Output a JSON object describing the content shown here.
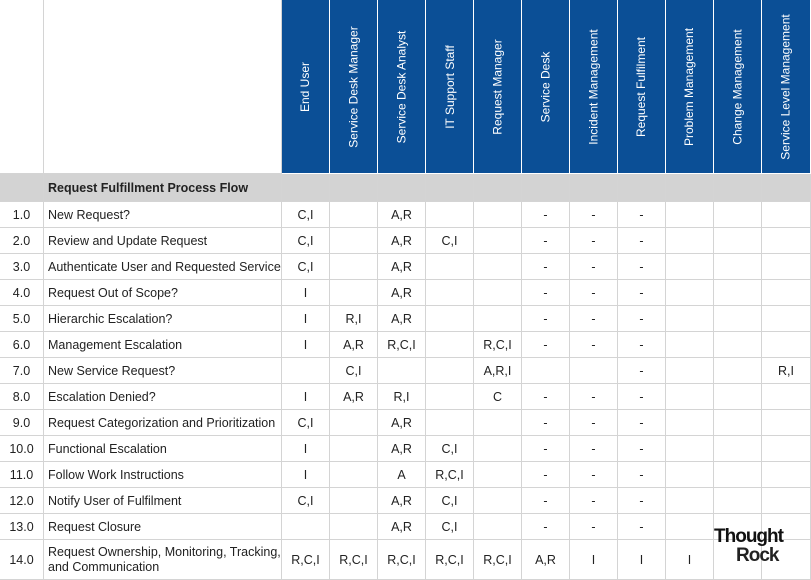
{
  "table": {
    "section_title": "Request Fulfillment Process Flow",
    "columns": [
      "End User",
      "Service Desk Manager",
      "Service Desk Analyst",
      "IT Support Staff",
      "Request Manager",
      "Service Desk",
      "Incident Management",
      "Request Fulfilment",
      "Problem Management",
      "Change Management",
      "Service Level Management"
    ],
    "rows": [
      {
        "number": "1.0",
        "activity": "New Request?",
        "cells": [
          "C,I",
          null,
          "A,R",
          null,
          null,
          "-",
          "-",
          "-",
          null,
          null,
          null
        ]
      },
      {
        "number": "2.0",
        "activity": "Review and Update Request",
        "cells": [
          "C,I",
          null,
          "A,R",
          "C,I",
          null,
          "-",
          "-",
          "-",
          null,
          null,
          null
        ]
      },
      {
        "number": "3.0",
        "activity": "Authenticate User and Requested Service",
        "cells": [
          "C,I",
          null,
          "A,R",
          null,
          null,
          "-",
          "-",
          "-",
          null,
          null,
          null
        ]
      },
      {
        "number": "4.0",
        "activity": "Request Out of Scope?",
        "cells": [
          "I",
          null,
          "A,R",
          null,
          null,
          "-",
          "-",
          "-",
          null,
          null,
          null
        ]
      },
      {
        "number": "5.0",
        "activity": "Hierarchic Escalation?",
        "cells": [
          "I",
          "R,I",
          "A,R",
          null,
          null,
          "-",
          "-",
          "-",
          null,
          null,
          null
        ]
      },
      {
        "number": "6.0",
        "activity": "Management Escalation",
        "cells": [
          "I",
          "A,R",
          "R,C,I",
          null,
          "R,C,I",
          "-",
          "-",
          "-",
          null,
          null,
          null
        ]
      },
      {
        "number": "7.0",
        "activity": "New Service Request?",
        "cells": [
          null,
          "C,I",
          null,
          null,
          "A,R,I",
          null,
          null,
          "-",
          null,
          null,
          "R,I"
        ]
      },
      {
        "number": "8.0",
        "activity": "Escalation Denied?",
        "cells": [
          "I",
          "A,R",
          "R,I",
          null,
          "C",
          "-",
          "-",
          "-",
          null,
          null,
          null
        ]
      },
      {
        "number": "9.0",
        "activity": "Request Categorization and Prioritization",
        "cells": [
          "C,I",
          null,
          "A,R",
          null,
          null,
          "-",
          "-",
          "-",
          null,
          null,
          null
        ]
      },
      {
        "number": "10.0",
        "activity": "Functional Escalation",
        "cells": [
          "I",
          null,
          "A,R",
          "C,I",
          null,
          "-",
          "-",
          "-",
          null,
          null,
          null
        ]
      },
      {
        "number": "11.0",
        "activity": "Follow Work Instructions",
        "cells": [
          "I",
          null,
          "A",
          "R,C,I",
          null,
          "-",
          "-",
          "-",
          null,
          null,
          null
        ]
      },
      {
        "number": "12.0",
        "activity": "Notify User of Fulfilment",
        "cells": [
          "C,I",
          null,
          "A,R",
          "C,I",
          null,
          "-",
          "-",
          "-",
          null,
          null,
          null
        ]
      },
      {
        "number": "13.0",
        "activity": "Request Closure",
        "cells": [
          null,
          null,
          "A,R",
          "C,I",
          null,
          "-",
          "-",
          "-",
          null,
          null,
          null
        ]
      },
      {
        "number": "14.0",
        "activity": "Request Ownership, Monitoring, Tracking, and Communication",
        "cells": [
          "R,C,I",
          "R,C,I",
          "R,C,I",
          "R,C,I",
          "R,C,I",
          "A,R",
          "I",
          "I",
          "I",
          null,
          null
        ]
      }
    ]
  },
  "logo": {
    "line1": "Thought",
    "line2": "Rock"
  }
}
